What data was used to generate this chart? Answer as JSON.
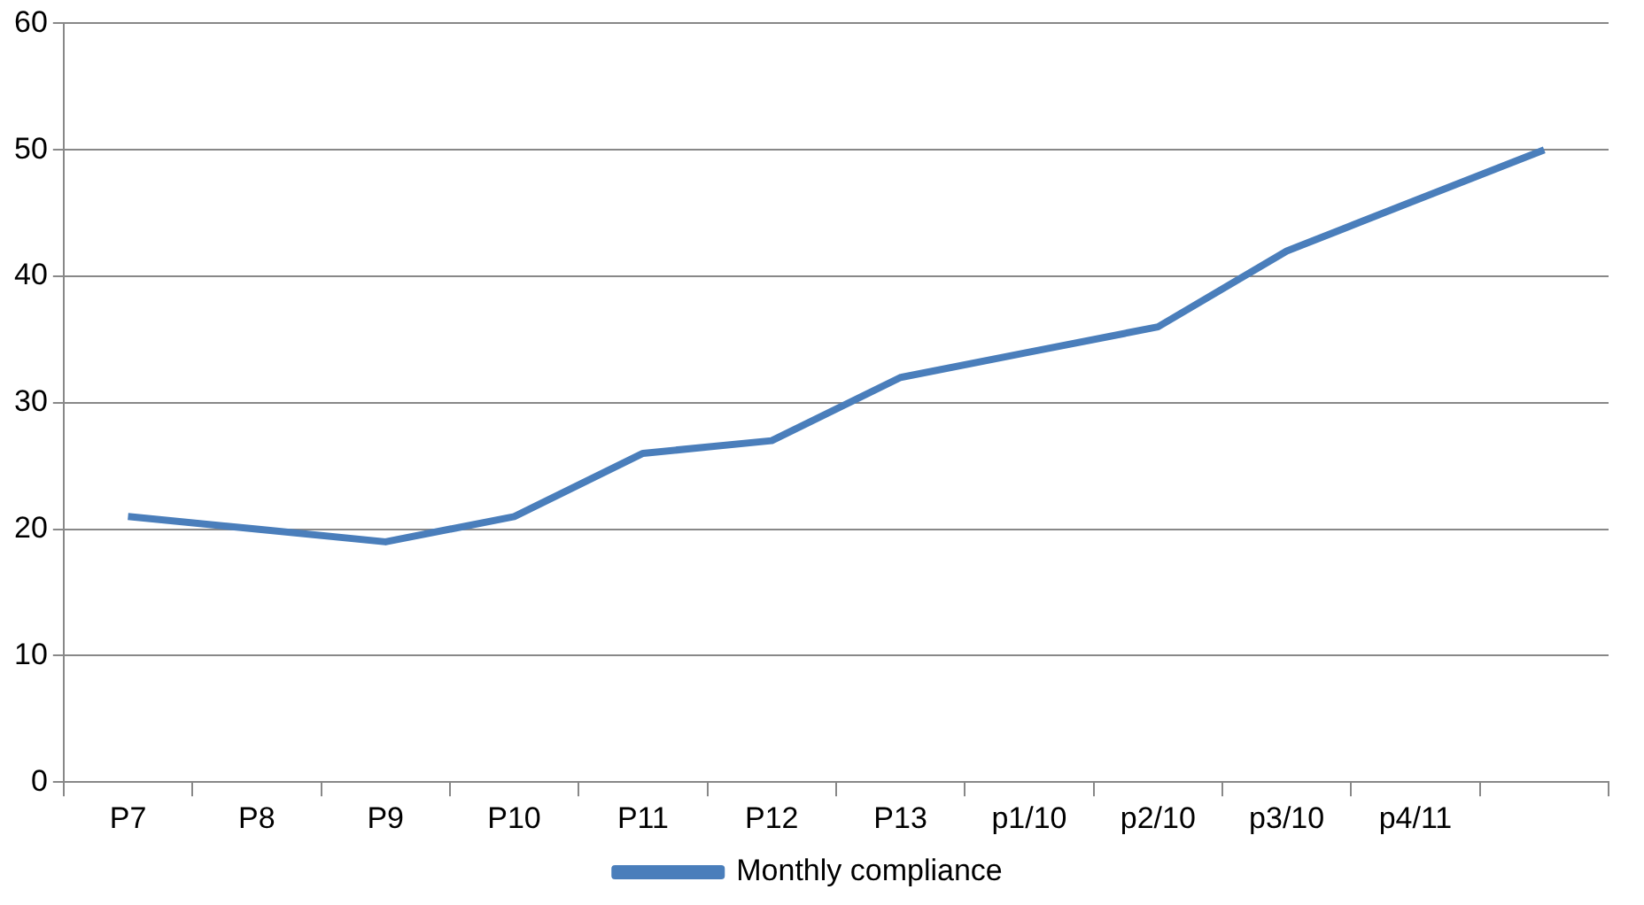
{
  "chart_data": {
    "type": "line",
    "categories": [
      "P7",
      "P8",
      "P9",
      "P10",
      "P11",
      "P12",
      "P13",
      "p1/10",
      "p2/10",
      "p3/10",
      "p4/11",
      null
    ],
    "series": [
      {
        "name": "Monthly compliance",
        "color": "#4a7ebb",
        "values": [
          21,
          20,
          19,
          21,
          26,
          27,
          32,
          34,
          36,
          42,
          46,
          50
        ]
      }
    ],
    "ylim": [
      0,
      60
    ],
    "yticks": [
      0,
      10,
      20,
      30,
      40,
      50,
      60
    ],
    "grid": "y",
    "legend": "bottom",
    "marker": "none",
    "line_style": "solid"
  }
}
